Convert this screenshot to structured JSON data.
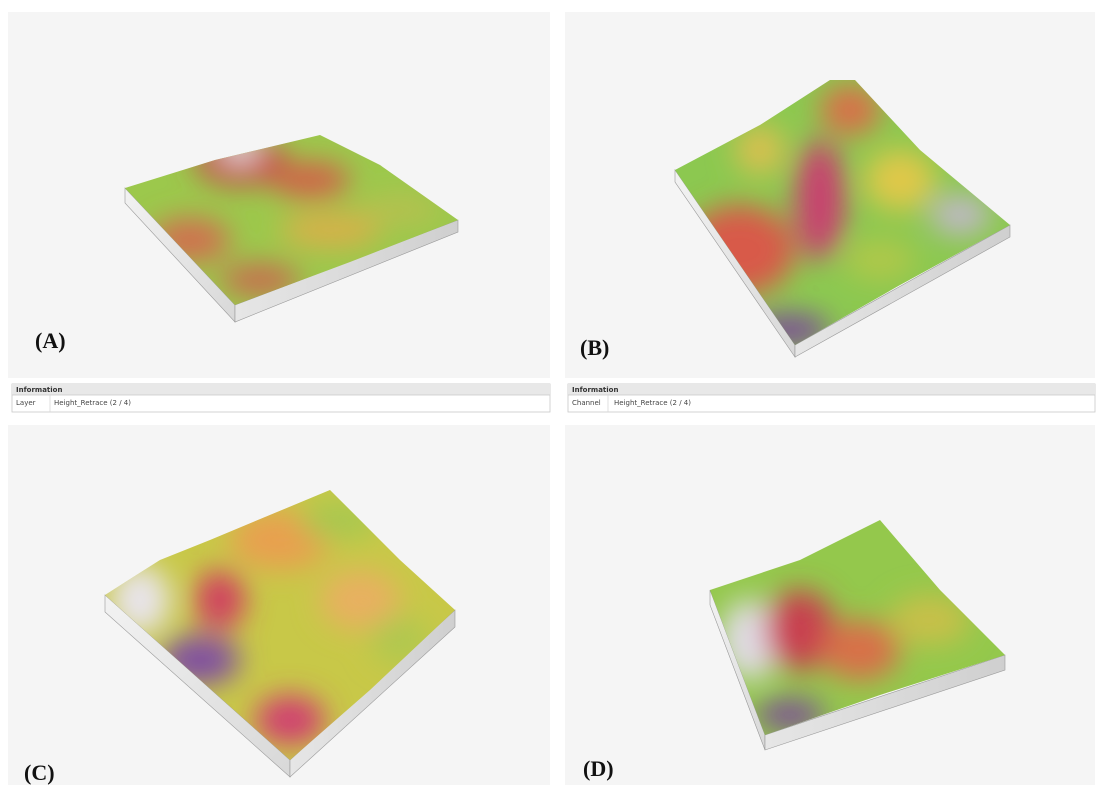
{
  "panels": [
    {
      "label": "(A)"
    },
    {
      "label": "(B)"
    },
    {
      "label": "(C)"
    },
    {
      "label": "(D)"
    }
  ],
  "info_bars": [
    {
      "title": "Information",
      "field": "Layer",
      "value": "Height_Retrace (2 / 4)"
    },
    {
      "title": "Information",
      "field": "Channel",
      "value": "Height_Retrace (2 / 4)"
    }
  ]
}
